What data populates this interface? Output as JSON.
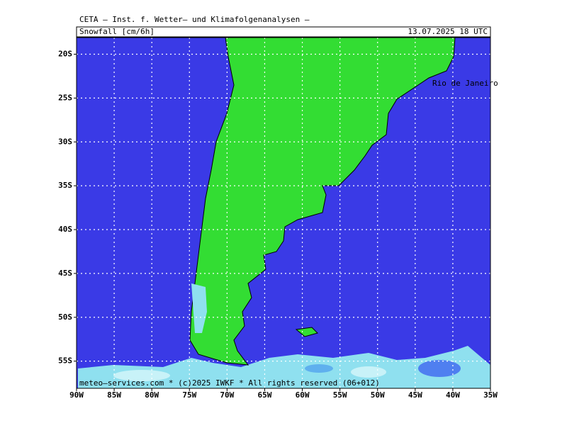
{
  "header": {
    "title": "CETA — Inst. f. Wetter— und Klimafolgenanalysen —",
    "field": "Snowfall [cm/6h]",
    "valid_time": "13.07.2025 18 UTC"
  },
  "map": {
    "lonlim": [
      -90,
      -35
    ],
    "latlim": [
      -58.1,
      -18.1
    ],
    "lon_ticks": [
      {
        "value": -90,
        "label": "90W"
      },
      {
        "value": -85,
        "label": "85W"
      },
      {
        "value": -80,
        "label": "80W"
      },
      {
        "value": -75,
        "label": "75W"
      },
      {
        "value": -70,
        "label": "70W"
      },
      {
        "value": -65,
        "label": "65W"
      },
      {
        "value": -60,
        "label": "60W"
      },
      {
        "value": -55,
        "label": "55W"
      },
      {
        "value": -50,
        "label": "50W"
      },
      {
        "value": -45,
        "label": "45W"
      },
      {
        "value": -40,
        "label": "40W"
      },
      {
        "value": -35,
        "label": "35W"
      }
    ],
    "lat_ticks": [
      {
        "value": -20,
        "label": "20S"
      },
      {
        "value": -25,
        "label": "25S"
      },
      {
        "value": -30,
        "label": "30S"
      },
      {
        "value": -35,
        "label": "35S"
      },
      {
        "value": -40,
        "label": "40S"
      },
      {
        "value": -45,
        "label": "45S"
      },
      {
        "value": -50,
        "label": "50S"
      },
      {
        "value": -55,
        "label": "55S"
      }
    ],
    "place_label": "Rio de Janeiro",
    "footer": "meteo—services.com * (c)2025 IWKF * All rights reserved (06+012)"
  }
}
